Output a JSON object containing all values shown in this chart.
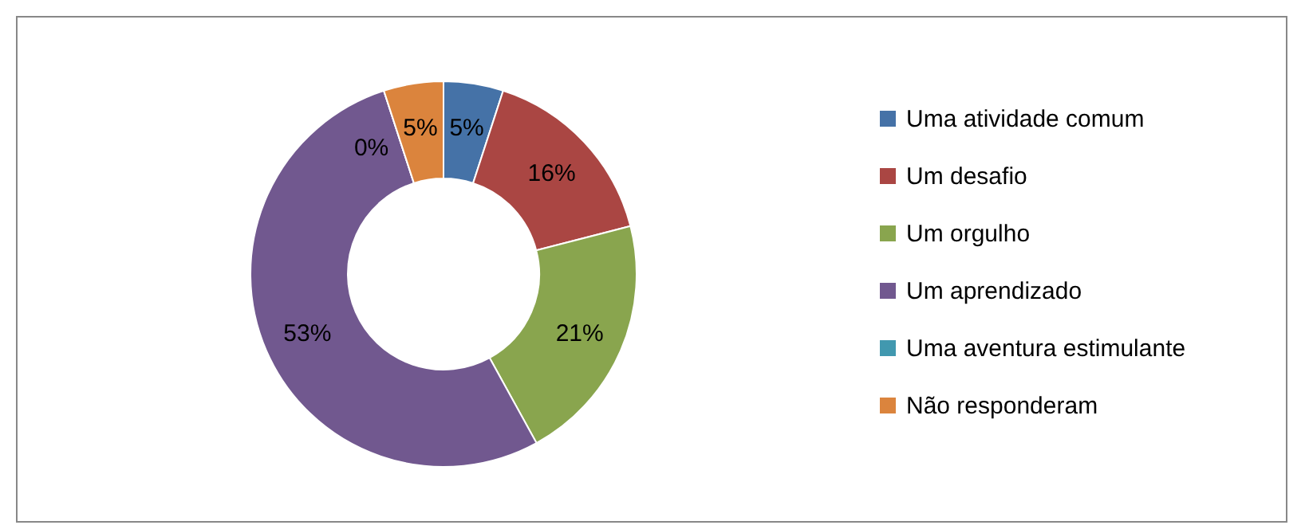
{
  "chart_data": {
    "type": "donut",
    "categories": [
      "Uma atividade comum",
      "Um desafio",
      "Um orgulho",
      "Um aprendizado",
      "Uma aventura estimulante",
      "Não responderam"
    ],
    "values": [
      5,
      16,
      21,
      53,
      0,
      5
    ],
    "colors": [
      "#4572a7",
      "#aa4643",
      "#89a54e",
      "#71588f",
      "#4198af",
      "#db843d"
    ],
    "value_labels": [
      "5%",
      "16%",
      "21%",
      "53%",
      "0%",
      "5%"
    ],
    "legend": "right"
  }
}
